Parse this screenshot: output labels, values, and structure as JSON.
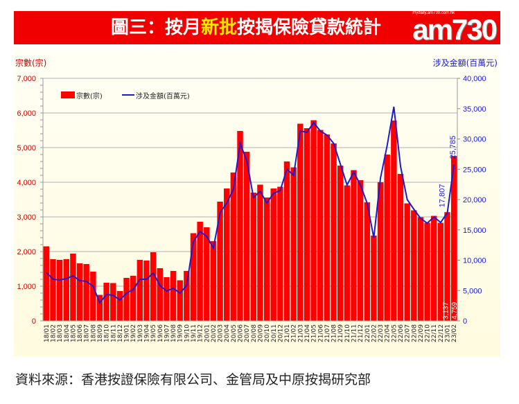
{
  "header": {
    "title_prefix": "圖三：按月",
    "title_highlight": "新批",
    "title_suffix": "按揭保險貸款統計",
    "logo": "am730",
    "logo_tagline": "mydaily.am730.com.hk"
  },
  "source": "資料來源：香港按證保險有限公司、金管局及中原按揭研究部",
  "colors": {
    "banner": "#f00000",
    "bars": "#ff0000",
    "line": "#1a1ad6",
    "left_axis": "#cc0000",
    "right_axis": "#1a1ad6"
  },
  "chart_data": {
    "type": "bar+line",
    "left_axis_label": "宗數(宗)",
    "right_axis_label": "涉及金額(百萬元)",
    "left_ylim": [
      0,
      7000
    ],
    "right_ylim": [
      0,
      40000
    ],
    "left_ticks": [
      "0",
      "1,000",
      "2,000",
      "3,000",
      "4,000",
      "5,000",
      "6,000",
      "7,000"
    ],
    "right_ticks": [
      "0",
      "5,000",
      "10,000",
      "15,000",
      "20,000",
      "25,000",
      "30,000",
      "35,000",
      "40,000"
    ],
    "grid": true,
    "legend_position": "top-left",
    "categories": [
      "18/01",
      "18/02",
      "18/03",
      "18/04",
      "18/05",
      "18/06",
      "18/07",
      "18/08",
      "18/09",
      "18/10",
      "18/11",
      "18/12",
      "19/01",
      "19/02",
      "19/03",
      "19/04",
      "19/05",
      "19/06",
      "19/07",
      "19/08",
      "19/09",
      "19/10",
      "19/11",
      "19/12",
      "20/01",
      "20/02",
      "20/03",
      "20/04",
      "20/05",
      "20/06",
      "20/07",
      "20/08",
      "20/09",
      "20/10",
      "20/11",
      "20/12",
      "21/01",
      "21/02",
      "21/03",
      "21/04",
      "21/05",
      "21/06",
      "21/07",
      "21/08",
      "21/09",
      "21/10",
      "21/11",
      "21/12",
      "22/01",
      "22/02",
      "22/03",
      "22/04",
      "22/05",
      "22/06",
      "22/07",
      "22/08",
      "22/09",
      "22/10",
      "22/11",
      "22/12",
      "23/01",
      "23/02"
    ],
    "series": [
      {
        "name": "宗數(宗)",
        "type": "bar",
        "axis": "left",
        "values": [
          2150,
          1780,
          1760,
          1780,
          1940,
          1660,
          1640,
          1420,
          750,
          1100,
          1090,
          860,
          1240,
          1300,
          1760,
          1740,
          1980,
          1520,
          1260,
          1440,
          1170,
          1440,
          2530,
          2860,
          2700,
          2300,
          3440,
          3820,
          4280,
          5480,
          4880,
          3700,
          3930,
          3560,
          3820,
          3870,
          4600,
          4430,
          5690,
          5560,
          5790,
          5510,
          5380,
          5120,
          4480,
          3910,
          4350,
          4060,
          3420,
          2460,
          4000,
          4800,
          5780,
          4240,
          3390,
          3190,
          2990,
          2830,
          3030,
          2830,
          3137,
          4759
        ],
        "data_labels": {
          "23/01": "3,137",
          "23/02": "4,759"
        }
      },
      {
        "name": "涉及金額(百萬元)",
        "type": "line",
        "axis": "right",
        "values": [
          8000,
          6860,
          6740,
          6970,
          7430,
          6630,
          6510,
          5710,
          2970,
          4340,
          4230,
          3430,
          4570,
          5140,
          6860,
          6860,
          7890,
          5830,
          4910,
          5370,
          4570,
          5830,
          13030,
          14740,
          13940,
          12000,
          17830,
          19430,
          21710,
          29260,
          26400,
          20340,
          21370,
          19430,
          21030,
          21490,
          25030,
          24000,
          31310,
          31090,
          32690,
          31310,
          30630,
          29260,
          25830,
          22400,
          24570,
          22400,
          19430,
          13710,
          23540,
          28910,
          35310,
          25490,
          20000,
          18400,
          16910,
          16110,
          17140,
          16230,
          17807,
          25785
        ],
        "data_labels": {
          "23/01": "17,807",
          "23/02": "25,785"
        }
      }
    ]
  }
}
